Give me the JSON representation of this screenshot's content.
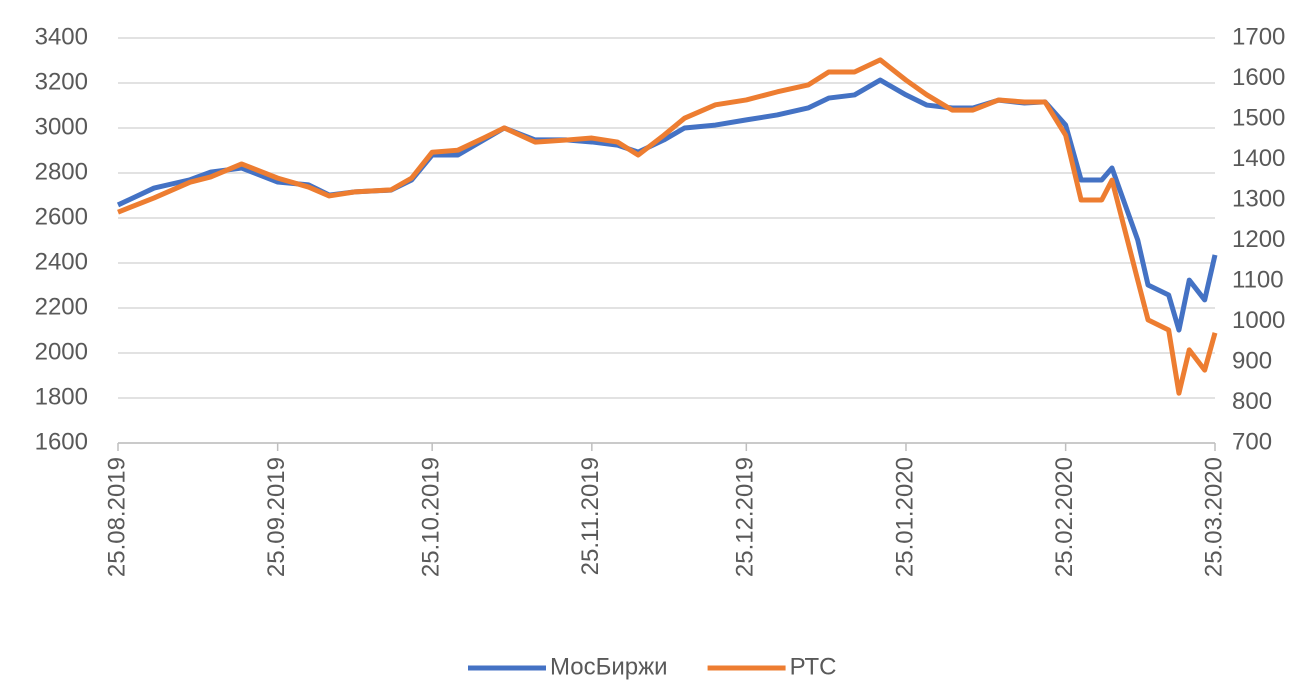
{
  "chart_data": {
    "type": "line",
    "x": [
      "25.08.2019",
      "01.09.2019",
      "08.09.2019",
      "12.09.2019",
      "18.09.2019",
      "25.09.2019",
      "01.10.2019",
      "05.10.2019",
      "10.10.2019",
      "17.10.2019",
      "21.10.2019",
      "25.10.2019",
      "30.10.2019",
      "04.11.2019",
      "08.11.2019",
      "14.11.2019",
      "20.11.2019",
      "25.11.2019",
      "30.11.2019",
      "04.12.2019",
      "09.12.2019",
      "13.12.2019",
      "19.12.2019",
      "25.12.2019",
      "31.12.2019",
      "06.01.2020",
      "10.01.2020",
      "15.01.2020",
      "20.01.2020",
      "25.01.2020",
      "29.01.2020",
      "03.02.2020",
      "07.02.2020",
      "12.02.2020",
      "17.02.2020",
      "21.02.2020",
      "25.02.2020",
      "28.02.2020",
      "03.03.2020",
      "05.03.2020",
      "10.03.2020",
      "12.03.2020",
      "16.03.2020",
      "18.03.2020",
      "20.03.2020",
      "23.03.2020",
      "25.03.2020"
    ],
    "series": [
      {
        "name": "МосБиржи",
        "color": "#4472c4",
        "values": [
          2658,
          2733,
          2770,
          2804,
          2822,
          2760,
          2747,
          2702,
          2716,
          2724,
          2769,
          2880,
          2880,
          2947,
          3000,
          2947,
          2947,
          2938,
          2924,
          2893,
          2947,
          3000,
          3013,
          3036,
          3058,
          3089,
          3133,
          3147,
          3213,
          3147,
          3102,
          3089,
          3089,
          3124,
          3111,
          3116,
          3013,
          2769,
          2769,
          2822,
          2502,
          2302,
          2258,
          2102,
          2324,
          2236,
          2436
        ]
      },
      {
        "name": "РТС",
        "color": "#ed7d31",
        "axis": "y2",
        "values": [
          1270,
          1305,
          1344,
          1357,
          1389,
          1354,
          1332,
          1310,
          1320,
          1325,
          1354,
          1418,
          1423,
          1453,
          1478,
          1443,
          1448,
          1453,
          1443,
          1411,
          1460,
          1502,
          1535,
          1547,
          1567,
          1584,
          1616,
          1616,
          1646,
          1596,
          1560,
          1522,
          1522,
          1547,
          1542,
          1542,
          1460,
          1300,
          1300,
          1349,
          1102,
          1004,
          979,
          823,
          930,
          880,
          972
        ]
      }
    ],
    "xticks": [
      "25.08.2019",
      "25.09.2019",
      "25.10.2019",
      "25.11.2019",
      "25.12.2019",
      "25.01.2020",
      "25.02.2020",
      "25.03.2020"
    ],
    "ylim": [
      1600,
      3400
    ],
    "yticks": [
      1600,
      1800,
      2000,
      2200,
      2400,
      2600,
      2800,
      3000,
      3200,
      3400
    ],
    "y2lim": [
      700,
      1700
    ],
    "y2ticks": [
      700,
      800,
      900,
      1000,
      1100,
      1200,
      1300,
      1400,
      1500,
      1600,
      1700
    ],
    "grid": true,
    "legend": "bottom"
  }
}
